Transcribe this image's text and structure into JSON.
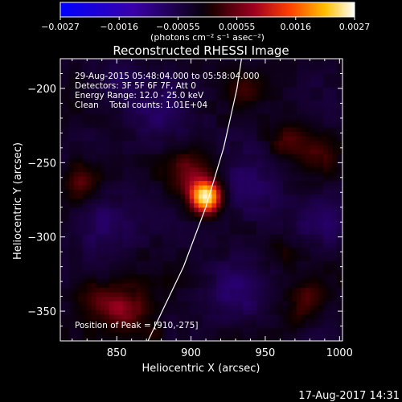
{
  "chart_data": {
    "type": "heatmap",
    "title": "Reconstructed RHESSI Image",
    "xlabel": "Heliocentric X (arcsec)",
    "ylabel": "Heliocentric Y (arcsec)",
    "xlim": [
      812,
      1002
    ],
    "ylim": [
      -370,
      -180
    ],
    "x_ticks": [
      850,
      900,
      950,
      1000
    ],
    "y_ticks": [
      -200,
      -250,
      -300,
      -350
    ],
    "colorbar": {
      "ticks": [
        "-0.0027",
        "-0.0016",
        "-0.00055",
        "0.00055",
        "0.0016",
        "0.0027"
      ],
      "min": -0.0027,
      "max": 0.0027,
      "units_line": "(photons cm⁻² s⁻¹ asec⁻²)",
      "colormap": "blue-black-red-yellow-white"
    },
    "annotations": [
      "29-Aug-2015 05:48:04.000 to 05:58:04.000",
      "Detectors: 3F 5F 6F 7F, Att 0",
      "Energy Range: 12.0 - 25.0 keV",
      "Clean    Total counts: 1.01E+04"
    ],
    "peak": {
      "x": 910,
      "y": -275,
      "label": "Position of Peak = [910,-275]"
    },
    "sources": [
      {
        "x": 910,
        "y": -273,
        "amplitude": 1.0,
        "sigma": 7
      },
      {
        "x": 900,
        "y": -258,
        "amplitude": 0.28,
        "sigma": 11
      },
      {
        "x": 827,
        "y": -262,
        "amplitude": 0.32,
        "sigma": 9
      },
      {
        "x": 855,
        "y": -348,
        "amplitude": 0.34,
        "sigma": 11
      },
      {
        "x": 835,
        "y": -340,
        "amplitude": 0.22,
        "sigma": 9
      },
      {
        "x": 965,
        "y": -235,
        "amplitude": 0.22,
        "sigma": 9
      },
      {
        "x": 985,
        "y": -245,
        "amplitude": 0.18,
        "sigma": 9
      },
      {
        "x": 980,
        "y": -340,
        "amplitude": 0.2,
        "sigma": 8
      },
      {
        "x": 970,
        "y": -355,
        "amplitude": 0.16,
        "sigma": 7
      },
      {
        "x": 960,
        "y": -310,
        "amplitude": 0.12,
        "sigma": 7
      },
      {
        "x": 935,
        "y": -200,
        "amplitude": 0.14,
        "sigma": 8
      },
      {
        "x": 875,
        "y": -365,
        "amplitude": 0.15,
        "sigma": 7
      },
      {
        "x": 840,
        "y": -290,
        "amplitude": -0.22,
        "sigma": 14
      },
      {
        "x": 880,
        "y": -220,
        "amplitude": -0.18,
        "sigma": 14
      },
      {
        "x": 940,
        "y": -270,
        "amplitude": -0.2,
        "sigma": 15
      },
      {
        "x": 930,
        "y": -340,
        "amplitude": -0.2,
        "sigma": 14
      },
      {
        "x": 850,
        "y": -195,
        "amplitude": -0.15,
        "sigma": 12
      },
      {
        "x": 990,
        "y": -290,
        "amplitude": -0.15,
        "sigma": 12
      }
    ],
    "limb_curve": [
      {
        "x": 871,
        "y": -370
      },
      {
        "x": 895,
        "y": -320
      },
      {
        "x": 910,
        "y": -280
      },
      {
        "x": 922,
        "y": -240
      },
      {
        "x": 931,
        "y": -200
      },
      {
        "x": 934,
        "y": -180
      }
    ]
  },
  "footer": {
    "timestamp": "17-Aug-2017 14:31"
  }
}
